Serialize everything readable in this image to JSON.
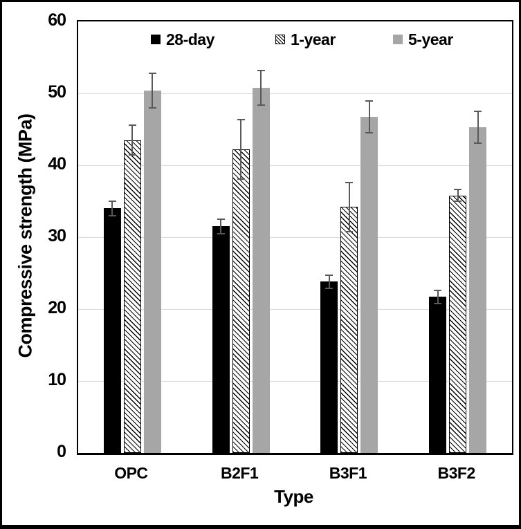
{
  "chart_data": {
    "type": "bar",
    "title": "",
    "xlabel": "Type",
    "ylabel": "Compressive strength (MPa)",
    "ylim": [
      0,
      60
    ],
    "y_ticks": [
      "0",
      "10",
      "20",
      "30",
      "40",
      "50",
      "60"
    ],
    "grid": true,
    "legend_position": "top-inside",
    "categories": [
      "OPC",
      "B2F1",
      "B3F1",
      "B3F2"
    ],
    "series": [
      {
        "name": "28-day",
        "style": "solid-black",
        "color": "#000000",
        "values": [
          34.0,
          31.5,
          23.8,
          21.7
        ],
        "errors": [
          1.1,
          1.1,
          1.0,
          1.0
        ]
      },
      {
        "name": "1-year",
        "style": "hatched",
        "color": "#ffffff",
        "hatch_color": "#000000",
        "values": [
          43.5,
          42.2,
          34.2,
          35.8
        ],
        "errors": [
          2.2,
          4.2,
          3.5,
          0.9
        ]
      },
      {
        "name": "5-year",
        "style": "solid-gray",
        "color": "#a6a6a6",
        "values": [
          50.4,
          50.8,
          46.7,
          45.3
        ],
        "errors": [
          2.5,
          2.5,
          2.3,
          2.3
        ]
      }
    ]
  },
  "colors": {
    "gridline": "#d9d9d9",
    "error_bar": "#595959",
    "plot_border": "#000000",
    "bar_gray": "#a6a6a6",
    "background": "#ffffff"
  }
}
